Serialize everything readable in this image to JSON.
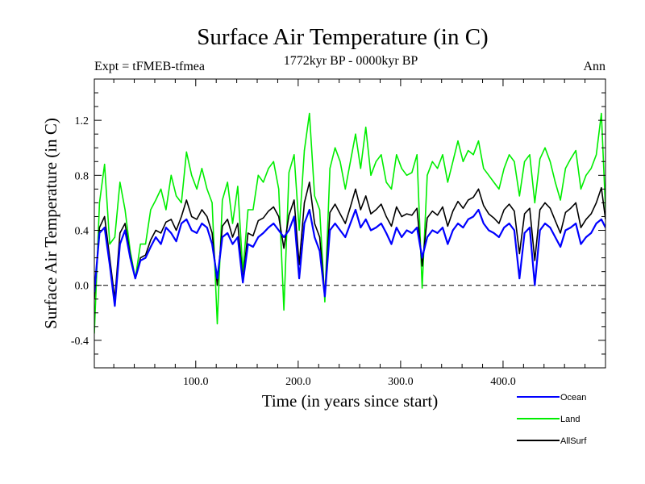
{
  "chart_data": {
    "type": "line",
    "title": "Surface Air Temperature (in C)",
    "subtitle_left": "Expt = tFMEB-tfmea",
    "subtitle_center": "1772kyr BP - 0000kyr BP",
    "subtitle_right": "Ann",
    "xlabel": "Time (in years since start)",
    "ylabel": "Surface Air Temperature (in C)",
    "xlim": [
      1,
      500
    ],
    "ylim": [
      -0.6,
      1.5
    ],
    "xticks": [
      100,
      200,
      300,
      400
    ],
    "xtick_labels": [
      "100.0",
      "200.0",
      "300.0",
      "400.0"
    ],
    "yticks": [
      -0.4,
      0.0,
      0.4,
      0.8,
      1.2
    ],
    "ytick_labels": [
      "-0.4",
      "0.0",
      "0.4",
      "0.8",
      "1.2"
    ],
    "zero_line": 0.0,
    "series": [
      {
        "name": "Ocean",
        "color": "#0000ff",
        "x": [
          1,
          6,
          11,
          16,
          21,
          26,
          31,
          36,
          41,
          46,
          51,
          56,
          61,
          66,
          71,
          76,
          81,
          86,
          91,
          96,
          101,
          106,
          111,
          116,
          121,
          126,
          131,
          136,
          141,
          146,
          151,
          156,
          161,
          166,
          171,
          176,
          181,
          186,
          191,
          196,
          201,
          206,
          211,
          216,
          221,
          226,
          231,
          236,
          241,
          246,
          251,
          256,
          261,
          266,
          271,
          276,
          281,
          286,
          291,
          296,
          301,
          306,
          311,
          316,
          321,
          326,
          331,
          336,
          341,
          346,
          351,
          356,
          361,
          366,
          371,
          376,
          381,
          386,
          391,
          396,
          401,
          406,
          411,
          416,
          421,
          426,
          431,
          436,
          441,
          446,
          451,
          456,
          461,
          466,
          471,
          476,
          481,
          486,
          491,
          496,
          500
        ],
        "values": [
          -0.05,
          0.38,
          0.42,
          0.15,
          -0.15,
          0.3,
          0.4,
          0.2,
          0.05,
          0.18,
          0.2,
          0.28,
          0.35,
          0.3,
          0.42,
          0.38,
          0.32,
          0.45,
          0.48,
          0.4,
          0.38,
          0.45,
          0.42,
          0.3,
          0.05,
          0.35,
          0.38,
          0.3,
          0.35,
          0.02,
          0.3,
          0.28,
          0.35,
          0.38,
          0.42,
          0.45,
          0.4,
          0.35,
          0.4,
          0.5,
          0.05,
          0.45,
          0.55,
          0.35,
          0.25,
          -0.08,
          0.4,
          0.45,
          0.4,
          0.35,
          0.45,
          0.55,
          0.42,
          0.48,
          0.4,
          0.42,
          0.45,
          0.38,
          0.3,
          0.42,
          0.35,
          0.4,
          0.38,
          0.42,
          0.2,
          0.35,
          0.4,
          0.38,
          0.42,
          0.3,
          0.4,
          0.45,
          0.42,
          0.48,
          0.5,
          0.55,
          0.45,
          0.4,
          0.38,
          0.35,
          0.42,
          0.45,
          0.4,
          0.05,
          0.38,
          0.42,
          0.0,
          0.4,
          0.45,
          0.42,
          0.35,
          0.28,
          0.4,
          0.42,
          0.45,
          0.3,
          0.35,
          0.38,
          0.45,
          0.48,
          0.42
        ]
      },
      {
        "name": "Land",
        "color": "#00ee00",
        "x": [
          1,
          6,
          11,
          16,
          21,
          26,
          31,
          36,
          41,
          46,
          51,
          56,
          61,
          66,
          71,
          76,
          81,
          86,
          91,
          96,
          101,
          106,
          111,
          116,
          121,
          126,
          131,
          136,
          141,
          146,
          151,
          156,
          161,
          166,
          171,
          176,
          181,
          186,
          191,
          196,
          201,
          206,
          211,
          216,
          221,
          226,
          231,
          236,
          241,
          246,
          251,
          256,
          261,
          266,
          271,
          276,
          281,
          286,
          291,
          296,
          301,
          306,
          311,
          316,
          321,
          326,
          331,
          336,
          341,
          346,
          351,
          356,
          361,
          366,
          371,
          376,
          381,
          386,
          391,
          396,
          401,
          406,
          411,
          416,
          421,
          426,
          431,
          436,
          441,
          446,
          451,
          456,
          461,
          466,
          471,
          476,
          481,
          486,
          491,
          496,
          500
        ],
        "values": [
          -0.35,
          0.6,
          0.88,
          0.3,
          0.35,
          0.75,
          0.55,
          0.25,
          0.05,
          0.3,
          0.3,
          0.55,
          0.62,
          0.7,
          0.55,
          0.8,
          0.65,
          0.6,
          0.97,
          0.8,
          0.7,
          0.85,
          0.7,
          0.6,
          -0.28,
          0.62,
          0.75,
          0.45,
          0.72,
          0.1,
          0.55,
          0.55,
          0.8,
          0.75,
          0.85,
          0.9,
          0.7,
          -0.18,
          0.82,
          0.95,
          0.4,
          0.98,
          1.25,
          0.65,
          0.55,
          -0.12,
          0.85,
          1.0,
          0.9,
          0.7,
          0.9,
          1.1,
          0.85,
          1.15,
          0.8,
          0.9,
          0.95,
          0.75,
          0.7,
          0.95,
          0.85,
          0.8,
          0.82,
          0.95,
          -0.02,
          0.8,
          0.9,
          0.85,
          0.95,
          0.75,
          0.9,
          1.05,
          0.9,
          0.98,
          0.95,
          1.05,
          0.85,
          0.8,
          0.75,
          0.7,
          0.85,
          0.95,
          0.9,
          0.65,
          0.9,
          0.95,
          0.6,
          0.92,
          1.0,
          0.9,
          0.75,
          0.62,
          0.85,
          0.92,
          0.98,
          0.7,
          0.8,
          0.85,
          0.95,
          1.25,
          0.55
        ]
      },
      {
        "name": "AllSurf",
        "color": "#000000",
        "x": [
          1,
          6,
          11,
          16,
          21,
          26,
          31,
          36,
          41,
          46,
          51,
          56,
          61,
          66,
          71,
          76,
          81,
          86,
          91,
          96,
          101,
          106,
          111,
          116,
          121,
          126,
          131,
          136,
          141,
          146,
          151,
          156,
          161,
          166,
          171,
          176,
          181,
          186,
          191,
          196,
          201,
          206,
          211,
          216,
          221,
          226,
          231,
          236,
          241,
          246,
          251,
          256,
          261,
          266,
          271,
          276,
          281,
          286,
          291,
          296,
          301,
          306,
          311,
          316,
          321,
          326,
          331,
          336,
          341,
          346,
          351,
          356,
          361,
          366,
          371,
          376,
          381,
          386,
          391,
          396,
          401,
          406,
          411,
          416,
          421,
          426,
          431,
          436,
          441,
          446,
          451,
          456,
          461,
          466,
          471,
          476,
          481,
          486,
          491,
          496,
          500
        ],
        "values": [
          -0.1,
          0.42,
          0.5,
          0.2,
          -0.1,
          0.38,
          0.45,
          0.22,
          0.05,
          0.2,
          0.22,
          0.33,
          0.4,
          0.38,
          0.46,
          0.48,
          0.4,
          0.5,
          0.62,
          0.5,
          0.48,
          0.55,
          0.5,
          0.38,
          0.0,
          0.43,
          0.48,
          0.35,
          0.45,
          0.04,
          0.38,
          0.36,
          0.47,
          0.49,
          0.54,
          0.57,
          0.5,
          0.27,
          0.51,
          0.62,
          0.15,
          0.6,
          0.75,
          0.45,
          0.35,
          -0.07,
          0.53,
          0.59,
          0.52,
          0.45,
          0.57,
          0.7,
          0.55,
          0.65,
          0.52,
          0.55,
          0.59,
          0.5,
          0.43,
          0.57,
          0.5,
          0.52,
          0.51,
          0.56,
          0.14,
          0.49,
          0.54,
          0.51,
          0.57,
          0.43,
          0.54,
          0.61,
          0.56,
          0.62,
          0.64,
          0.7,
          0.58,
          0.52,
          0.49,
          0.45,
          0.55,
          0.59,
          0.54,
          0.23,
          0.52,
          0.56,
          0.18,
          0.55,
          0.6,
          0.56,
          0.47,
          0.38,
          0.53,
          0.56,
          0.6,
          0.42,
          0.48,
          0.52,
          0.6,
          0.71,
          0.48
        ]
      }
    ],
    "legend": {
      "placement": "bottom-right",
      "entries": [
        "Ocean",
        "Land",
        "AllSurf"
      ]
    },
    "zero_line_color": "#000000",
    "axis_color": "#000000"
  }
}
